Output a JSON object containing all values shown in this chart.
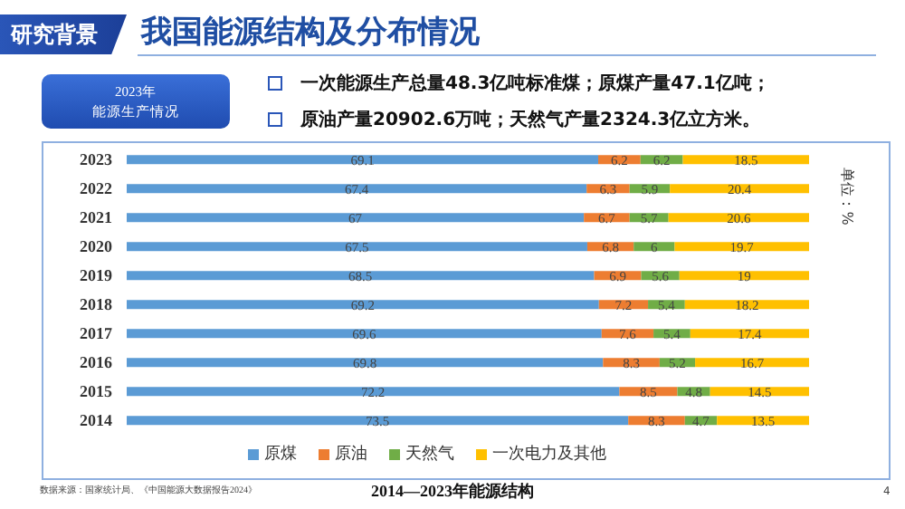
{
  "chart_data": {
    "type": "bar",
    "orientation": "horizontal",
    "stacked": true,
    "title": "2014—2023年能源结构",
    "categories": [
      "2023",
      "2022",
      "2021",
      "2020",
      "2019",
      "2018",
      "2017",
      "2016",
      "2015",
      "2014"
    ],
    "series": [
      {
        "name": "原煤",
        "color": "#5b9bd5",
        "values": [
          69.1,
          67.4,
          67.0,
          67.5,
          68.5,
          69.2,
          69.6,
          69.8,
          72.2,
          73.5
        ]
      },
      {
        "name": "原油",
        "color": "#ed7d31",
        "values": [
          6.2,
          6.3,
          6.7,
          6.8,
          6.9,
          7.2,
          7.6,
          8.3,
          8.5,
          8.3
        ]
      },
      {
        "name": "天然气",
        "color": "#70ad47",
        "values": [
          6.2,
          5.9,
          5.7,
          6,
          5.6,
          5.4,
          5.4,
          5.2,
          4.8,
          4.7
        ]
      },
      {
        "name": "一次电力及其他",
        "color": "#ffc000",
        "values": [
          18.5,
          20.4,
          20.6,
          19.7,
          19,
          18.2,
          17.4,
          16.7,
          14.5,
          13.5
        ]
      }
    ],
    "xlim": [
      0,
      100
    ],
    "tick_labels": "y",
    "legend": "bottom",
    "data_labels": true,
    "annotations": [
      "研究背景",
      "我国能源结构及分布情况",
      "2023年",
      "能源生产情况",
      "一次能源生产总量48.3亿吨标准煤；原煤产量47.1亿吨；",
      "原油产量20902.6万吨；天然气产量2324.3亿立方米。",
      "单位：%",
      "数据来源：国家统计局、《中国能源大数据报告2024》",
      "4"
    ]
  }
}
